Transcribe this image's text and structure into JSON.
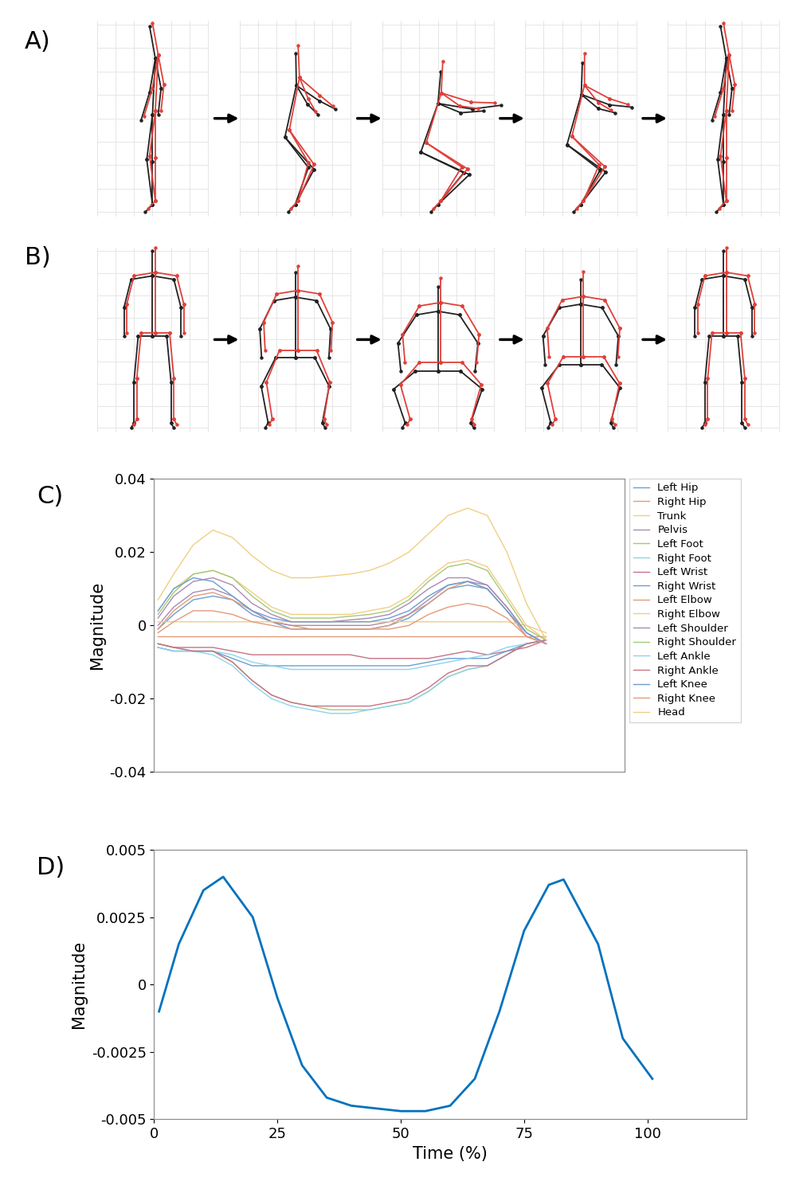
{
  "panel_labels": [
    "A)",
    "B)",
    "C)",
    "D)"
  ],
  "chart_data": [
    {
      "type": "line",
      "ylabel": "Magnitude",
      "x": [
        1,
        5,
        10,
        15,
        20,
        25,
        30,
        35,
        40,
        45,
        50,
        55,
        60,
        65,
        70,
        75,
        80,
        85,
        90,
        95,
        100
      ],
      "xlim": [
        0,
        120
      ],
      "ylim": [
        -0.04,
        0.04
      ],
      "yticks": [
        -0.04,
        -0.02,
        0,
        0.02,
        0.04
      ],
      "tick_labels": "y",
      "legend": "upper right",
      "series": [
        {
          "name": "Left Hip",
          "color": "#6A9FD0",
          "values": [
            -0.001,
            0.003,
            0.007,
            0.008,
            0.007,
            0.003,
            0.001,
            -0.001,
            -0.001,
            -0.001,
            -0.001,
            -0.001,
            0.0,
            0.002,
            0.006,
            0.01,
            0.011,
            0.01,
            0.004,
            -0.003,
            -0.005
          ]
        },
        {
          "name": "Right Hip",
          "color": "#E39A7A",
          "values": [
            -0.001,
            0.004,
            0.008,
            0.009,
            0.007,
            0.004,
            0.001,
            0.0,
            -0.001,
            -0.001,
            -0.001,
            -0.001,
            0.0,
            0.003,
            0.006,
            0.01,
            0.012,
            0.01,
            0.004,
            -0.003,
            -0.005
          ]
        },
        {
          "name": "Trunk",
          "color": "#F0CF83",
          "values": [
            0.004,
            0.01,
            0.014,
            0.015,
            0.013,
            0.009,
            0.005,
            0.003,
            0.003,
            0.003,
            0.003,
            0.004,
            0.005,
            0.008,
            0.013,
            0.017,
            0.018,
            0.016,
            0.008,
            0.0,
            -0.004
          ]
        },
        {
          "name": "Pelvis",
          "color": "#A98BB5",
          "values": [
            0.0,
            0.005,
            0.009,
            0.01,
            0.008,
            0.004,
            0.001,
            0.0,
            0.0,
            0.0,
            0.0,
            0.0,
            0.001,
            0.003,
            0.007,
            0.011,
            0.012,
            0.011,
            0.005,
            -0.002,
            -0.005
          ]
        },
        {
          "name": "Left Foot",
          "color": "#A5C97A",
          "values": [
            -0.005,
            -0.006,
            -0.007,
            -0.007,
            -0.01,
            -0.015,
            -0.019,
            -0.021,
            -0.022,
            -0.023,
            -0.023,
            -0.023,
            -0.022,
            -0.021,
            -0.018,
            -0.014,
            -0.012,
            -0.011,
            -0.008,
            -0.005,
            -0.004
          ]
        },
        {
          "name": "Right Foot",
          "color": "#8ED3EE",
          "values": [
            -0.006,
            -0.007,
            -0.007,
            -0.008,
            -0.011,
            -0.016,
            -0.02,
            -0.022,
            -0.023,
            -0.024,
            -0.024,
            -0.023,
            -0.022,
            -0.021,
            -0.018,
            -0.014,
            -0.012,
            -0.011,
            -0.008,
            -0.005,
            -0.004
          ]
        },
        {
          "name": "Left Wrist",
          "color": "#C87283",
          "values": [
            -0.005,
            -0.006,
            -0.006,
            -0.006,
            -0.007,
            -0.008,
            -0.008,
            -0.008,
            -0.008,
            -0.008,
            -0.008,
            -0.009,
            -0.009,
            -0.009,
            -0.009,
            -0.008,
            -0.007,
            -0.008,
            -0.007,
            -0.006,
            -0.004
          ]
        },
        {
          "name": "Right Wrist",
          "color": "#6A9FD0",
          "values": [
            -0.006,
            -0.007,
            -0.007,
            -0.007,
            -0.009,
            -0.011,
            -0.011,
            -0.011,
            -0.011,
            -0.011,
            -0.011,
            -0.011,
            -0.011,
            -0.011,
            -0.01,
            -0.009,
            -0.009,
            -0.009,
            -0.007,
            -0.005,
            -0.004
          ]
        },
        {
          "name": "Left Elbow",
          "color": "#E39A7A",
          "values": [
            -0.003,
            -0.003,
            -0.003,
            -0.003,
            -0.003,
            -0.003,
            -0.003,
            -0.003,
            -0.003,
            -0.003,
            -0.003,
            -0.003,
            -0.003,
            -0.003,
            -0.003,
            -0.003,
            -0.003,
            -0.003,
            -0.003,
            -0.003,
            -0.003
          ]
        },
        {
          "name": "Right Elbow",
          "color": "#F0CF83",
          "values": [
            0.001,
            0.001,
            0.001,
            0.001,
            0.001,
            0.001,
            0.001,
            0.001,
            0.001,
            0.001,
            0.001,
            0.001,
            0.001,
            0.001,
            0.001,
            0.001,
            0.001,
            0.001,
            0.001,
            0.0,
            -0.002
          ]
        },
        {
          "name": "Left Shoulder",
          "color": "#A98BB5",
          "values": [
            0.002,
            0.008,
            0.012,
            0.013,
            0.011,
            0.006,
            0.003,
            0.001,
            0.001,
            0.001,
            0.0015,
            0.002,
            0.003,
            0.006,
            0.01,
            0.013,
            0.013,
            0.011,
            0.005,
            -0.002,
            -0.005
          ]
        },
        {
          "name": "Right Shoulder",
          "color": "#A5C97A",
          "values": [
            0.003,
            0.009,
            0.014,
            0.015,
            0.013,
            0.008,
            0.004,
            0.002,
            0.002,
            0.002,
            0.0025,
            0.003,
            0.004,
            0.007,
            0.012,
            0.016,
            0.017,
            0.015,
            0.007,
            -0.001,
            -0.004
          ]
        },
        {
          "name": "Left Ankle",
          "color": "#8ED3EE",
          "values": [
            -0.006,
            -0.007,
            -0.007,
            -0.007,
            -0.008,
            -0.01,
            -0.011,
            -0.012,
            -0.012,
            -0.012,
            -0.012,
            -0.012,
            -0.012,
            -0.012,
            -0.011,
            -0.01,
            -0.009,
            -0.008,
            -0.006,
            -0.005,
            -0.004
          ]
        },
        {
          "name": "Right Ankle",
          "color": "#C87283",
          "values": [
            -0.005,
            -0.006,
            -0.007,
            -0.007,
            -0.01,
            -0.015,
            -0.019,
            -0.021,
            -0.022,
            -0.022,
            -0.022,
            -0.022,
            -0.021,
            -0.02,
            -0.017,
            -0.013,
            -0.011,
            -0.011,
            -0.008,
            -0.005,
            -0.004
          ]
        },
        {
          "name": "Left Knee",
          "color": "#6A9FD0",
          "values": [
            0.004,
            0.01,
            0.013,
            0.012,
            0.008,
            0.004,
            0.002,
            0.001,
            0.001,
            0.001,
            0.001,
            0.001,
            0.002,
            0.004,
            0.008,
            0.011,
            0.012,
            0.01,
            0.004,
            -0.002,
            -0.005
          ]
        },
        {
          "name": "Right Knee",
          "color": "#E39A7A",
          "values": [
            -0.002,
            0.001,
            0.004,
            0.004,
            0.003,
            0.001,
            0.0,
            -0.001,
            -0.001,
            -0.001,
            -0.001,
            -0.001,
            -0.001,
            0.0,
            0.003,
            0.005,
            0.006,
            0.005,
            0.002,
            -0.003,
            -0.005
          ]
        },
        {
          "name": "Head",
          "color": "#F0CF83",
          "values": [
            0.007,
            0.014,
            0.022,
            0.026,
            0.024,
            0.019,
            0.015,
            0.013,
            0.013,
            0.0135,
            0.014,
            0.015,
            0.017,
            0.02,
            0.025,
            0.03,
            0.032,
            0.03,
            0.02,
            0.006,
            -0.004
          ]
        }
      ]
    },
    {
      "type": "line",
      "xlabel": "Time (%)",
      "ylabel": "Magnitude",
      "x": [
        1,
        5,
        10,
        14,
        20,
        25,
        30,
        35,
        40,
        45,
        50,
        55,
        60,
        65,
        70,
        75,
        80,
        83,
        90,
        95,
        101
      ],
      "xlim": [
        0,
        120
      ],
      "xticks": [
        0,
        25,
        50,
        75,
        100
      ],
      "ylim": [
        -0.005,
        0.005
      ],
      "yticks": [
        -0.005,
        -0.0025,
        0,
        0.0025,
        0.005
      ],
      "series": [
        {
          "color": "#0072BD",
          "values": [
            -0.001,
            0.0015,
            0.0035,
            0.004,
            0.0025,
            -0.0005,
            -0.003,
            -0.0042,
            -0.0045,
            -0.0046,
            -0.0047,
            -0.0047,
            -0.0045,
            -0.0035,
            -0.001,
            0.002,
            0.0037,
            0.0039,
            0.0015,
            -0.002,
            -0.0035
          ]
        }
      ]
    }
  ]
}
